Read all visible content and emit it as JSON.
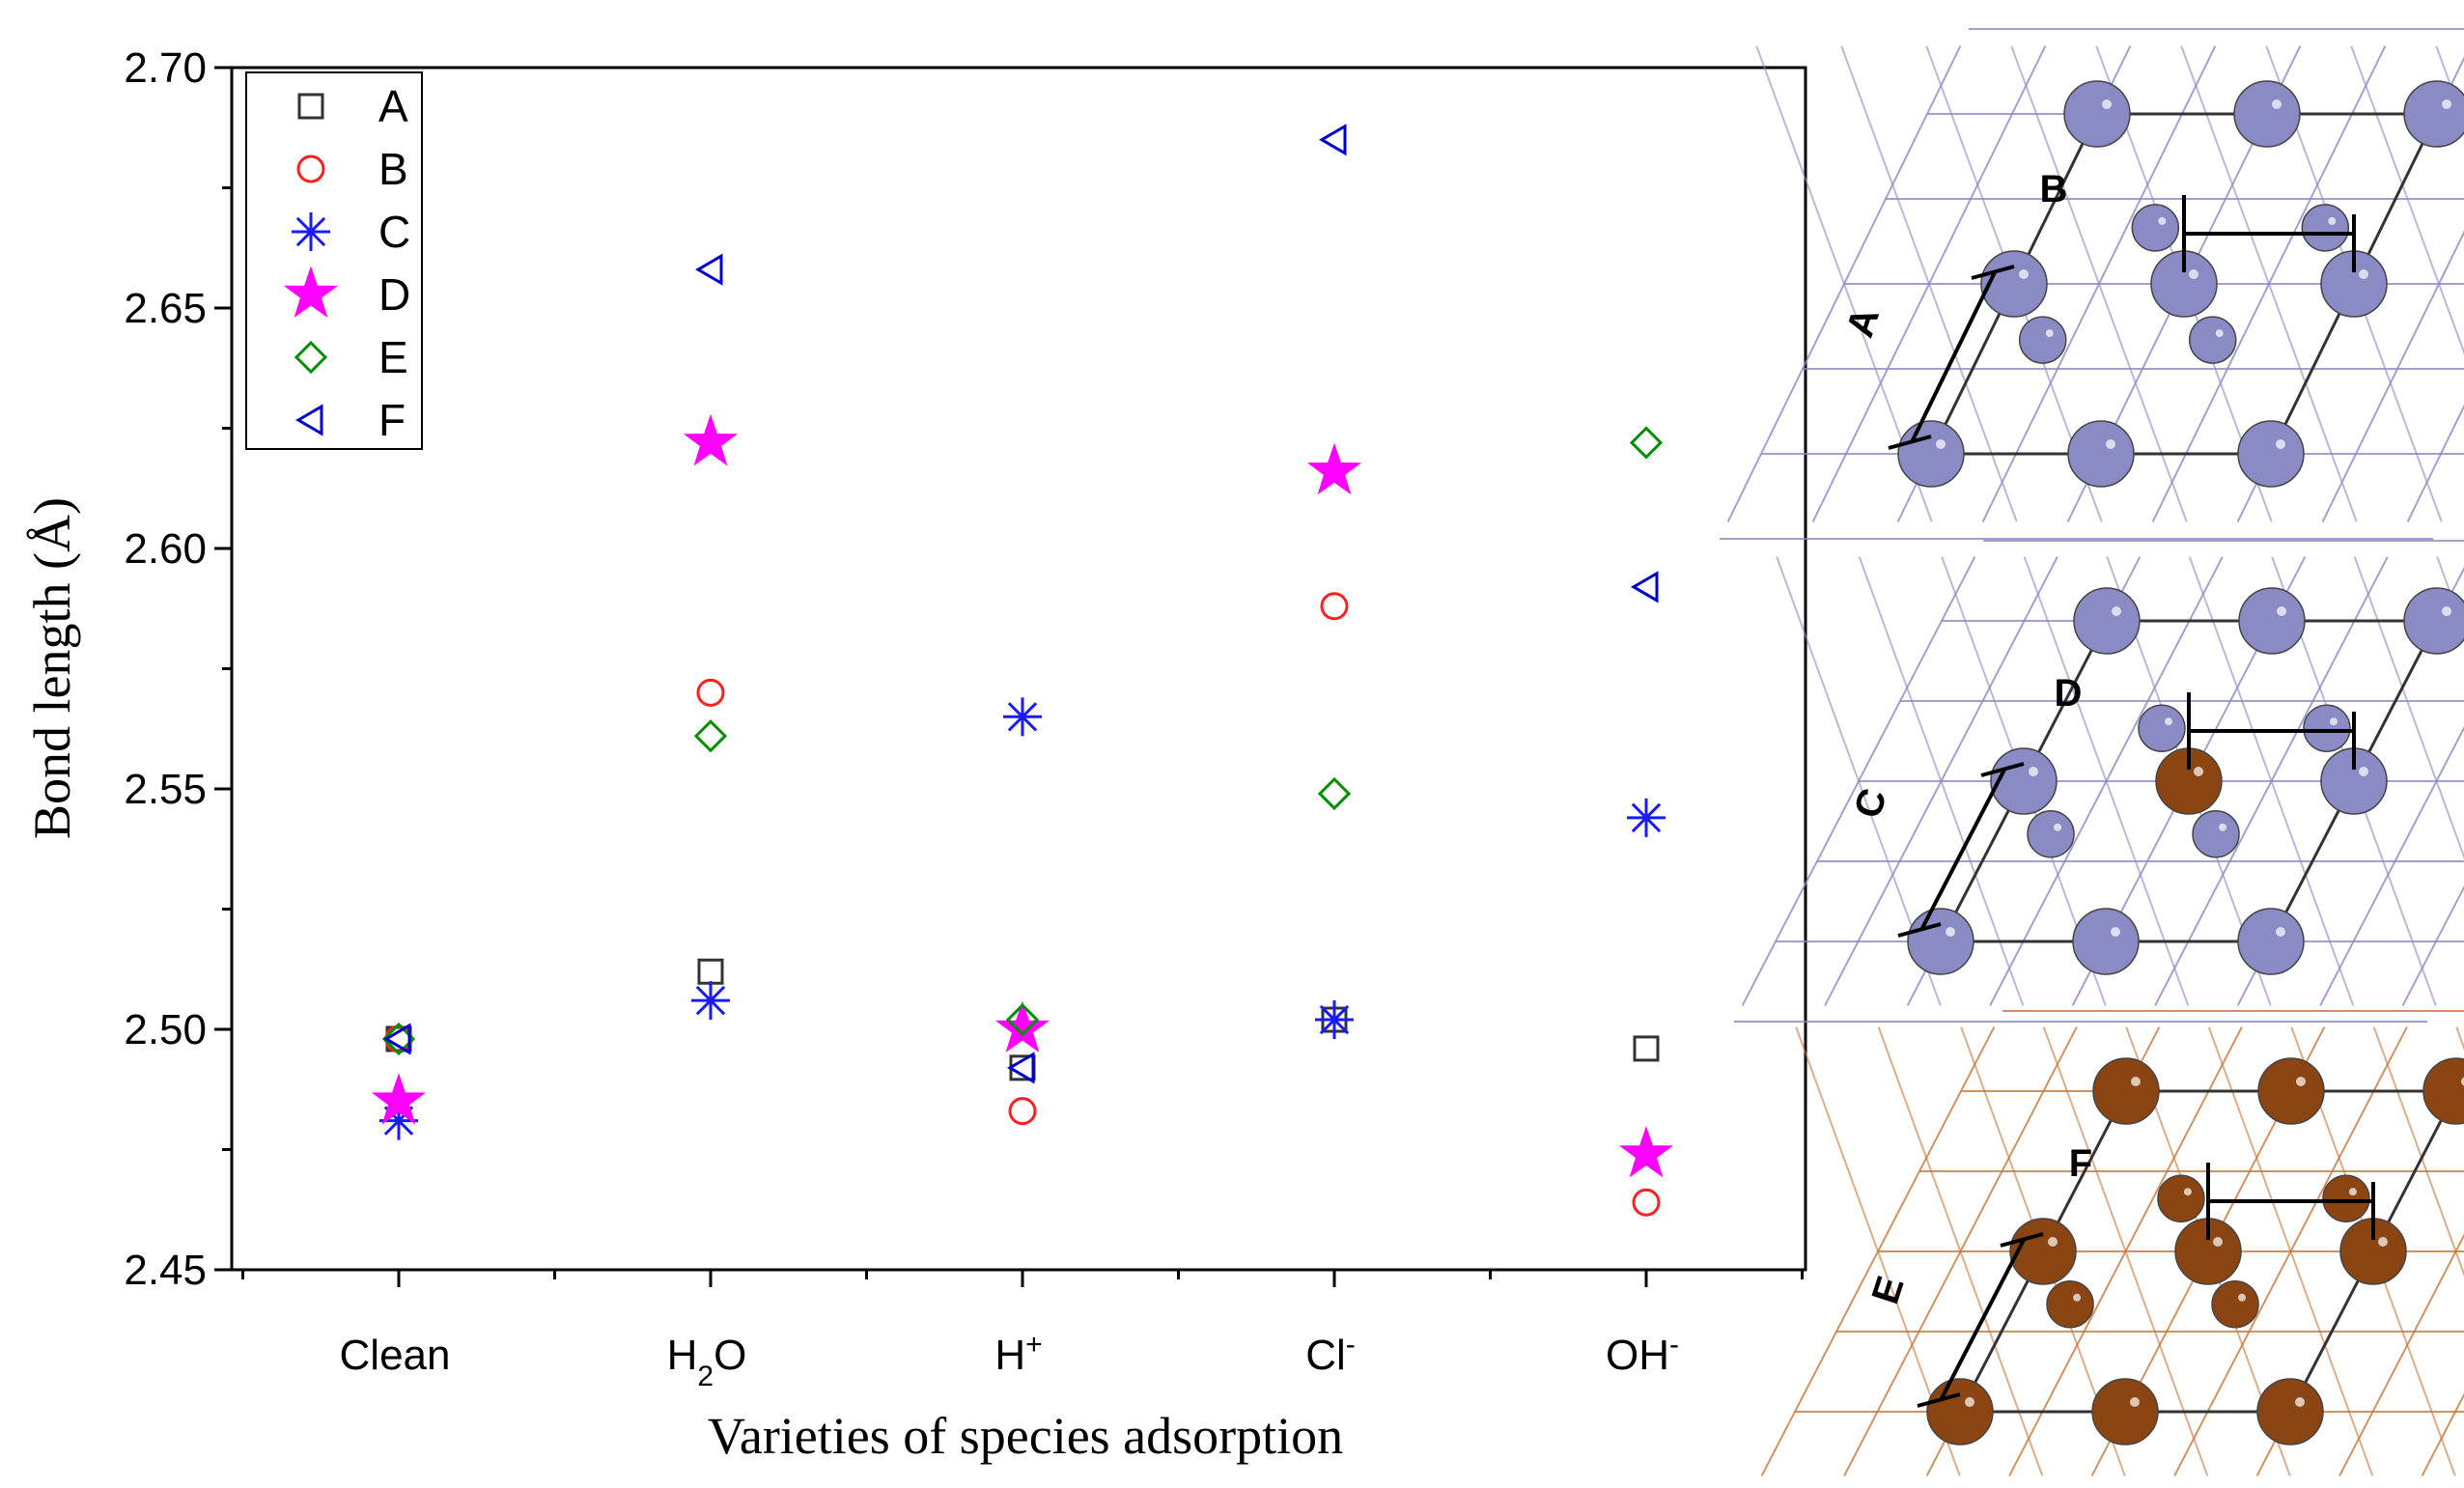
{
  "chart_data": {
    "type": "scatter",
    "ylabel": "Bond length (Å)",
    "xlabel": "Varieties of species adsorption",
    "categories": [
      {
        "main": "Clean",
        "sub": "",
        "sup": ""
      },
      {
        "main": "H",
        "sub": "2",
        "sup": "",
        "tail": "O"
      },
      {
        "main": "H",
        "sub": "",
        "sup": "+"
      },
      {
        "main": "Cl",
        "sub": "",
        "sup": "-"
      },
      {
        "main": "OH",
        "sub": "",
        "sup": "-"
      }
    ],
    "ylim": [
      2.45,
      2.7
    ],
    "yticks": [
      "2.45",
      "2.50",
      "2.55",
      "2.60",
      "2.65",
      "2.70"
    ],
    "legend_position": "top-left",
    "series": [
      {
        "name": "A",
        "marker": "square",
        "color": "#333333",
        "values": [
          2.498,
          2.512,
          2.492,
          2.502,
          2.496
        ]
      },
      {
        "name": "B",
        "marker": "circle",
        "color": "#ff2020",
        "values": [
          2.498,
          2.57,
          2.483,
          2.588,
          2.464
        ]
      },
      {
        "name": "C",
        "marker": "asterisk",
        "color": "#1a1aff",
        "values": [
          2.481,
          2.506,
          2.565,
          2.502,
          2.544
        ]
      },
      {
        "name": "D",
        "marker": "star",
        "color": "#ff00ff",
        "values": [
          2.485,
          2.622,
          2.5,
          2.616,
          2.474
        ]
      },
      {
        "name": "E",
        "marker": "diamond",
        "color": "#008f00",
        "values": [
          2.498,
          2.561,
          2.502,
          2.549,
          2.622
        ]
      },
      {
        "name": "F",
        "marker": "triangle-left",
        "color": "#0000cc",
        "values": [
          2.498,
          2.658,
          2.492,
          2.685,
          2.592
        ]
      }
    ]
  },
  "panels": [
    {
      "name": "top",
      "atom_color": "#8a8ac4",
      "bond_color": "#8a8ac4",
      "labels": [
        "A",
        "B"
      ]
    },
    {
      "name": "middle",
      "atom_color": "#8a8ac4",
      "bond_color": "#8a8ac4",
      "highlight_color": "#8b4513",
      "labels": [
        "C",
        "D"
      ]
    },
    {
      "name": "bottom",
      "atom_color": "#8b4513",
      "bond_color": "#c8763a",
      "labels": [
        "E",
        "F"
      ]
    }
  ]
}
